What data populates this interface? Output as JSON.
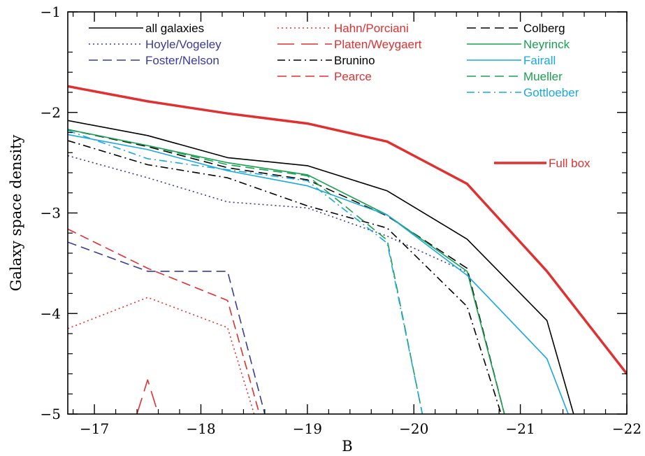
{
  "chart_data": {
    "type": "line",
    "title": "",
    "xlabel": "B",
    "ylabel": "Galaxy space density",
    "xlim": [
      -16.75,
      -22
    ],
    "ylim": [
      -5,
      -1
    ],
    "x_ticks": [
      -17,
      -18,
      -19,
      -20,
      -21,
      -22
    ],
    "y_ticks": [
      -5,
      -4,
      -3,
      -2,
      -1
    ],
    "x_tick_labels": [
      "−17",
      "−18",
      "−19",
      "−20",
      "−21",
      "−22"
    ],
    "y_tick_labels": [
      "−5",
      "−4",
      "−3",
      "−2",
      "−1"
    ],
    "grid": false,
    "legend": "top",
    "series": [
      {
        "name": "all galaxies",
        "color": "#000000",
        "dash": "solid",
        "width": 1.6,
        "x": [
          -16.75,
          -17.5,
          -18.25,
          -19,
          -19.75,
          -20.5,
          -21.25,
          -21.5
        ],
        "y": [
          -2.08,
          -2.23,
          -2.45,
          -2.53,
          -2.78,
          -3.26,
          -4.07,
          -5.0
        ]
      },
      {
        "name": "Hoyle/Vogeley",
        "color": "#3a3a9a",
        "dash": "dotted",
        "width": 1.6,
        "x": [
          -16.75,
          -17.5,
          -18.25,
          -19,
          -19.75,
          -20.5
        ],
        "y": [
          -2.43,
          -2.65,
          -2.89,
          -2.95,
          -3.23,
          -3.59
        ]
      },
      {
        "name": "Foster/Nelson",
        "color": "#3a3a9a",
        "dash": "dashed",
        "width": 1.6,
        "x": [
          -16.75,
          -17.5,
          -18.25,
          -18.6
        ],
        "y": [
          -3.29,
          -3.58,
          -3.58,
          -5.0
        ]
      },
      {
        "name": "Hahn/Porciani",
        "color": "#e03030",
        "dash": "dotted",
        "width": 1.6,
        "x": [
          -16.75,
          -17.5,
          -18.25,
          -18.5
        ],
        "y": [
          -4.15,
          -3.84,
          -4.14,
          -5.0
        ]
      },
      {
        "name": "Platen/Weygaert",
        "color": "#e03030",
        "dash": "longdash",
        "width": 1.6,
        "x": [
          -17.4,
          -17.5,
          -17.6
        ],
        "y": [
          -5.0,
          -4.66,
          -5.0
        ]
      },
      {
        "name": "Brunino",
        "color": "#000000",
        "dash": "dashdot",
        "width": 1.6,
        "x": [
          -16.75,
          -17.5,
          -18.25,
          -19,
          -19.75,
          -20.5,
          -20.82
        ],
        "y": [
          -2.28,
          -2.52,
          -2.65,
          -2.93,
          -3.15,
          -3.93,
          -5.0
        ]
      },
      {
        "name": "Pearce",
        "color": "#e03030",
        "dash": "dashed",
        "width": 1.6,
        "x": [
          -16.75,
          -17.5,
          -18.25,
          -18.55
        ],
        "y": [
          -3.16,
          -3.55,
          -3.87,
          -5.0
        ]
      },
      {
        "name": "Colberg",
        "color": "#000000",
        "dash": "dashed",
        "width": 1.6,
        "x": [
          -16.75,
          -17.5,
          -18.25,
          -19,
          -19.75,
          -20.5,
          -20.85
        ],
        "y": [
          -2.17,
          -2.34,
          -2.55,
          -2.67,
          -3.03,
          -3.55,
          -5.0
        ]
      },
      {
        "name": "Neyrinck",
        "color": "#1aa050",
        "dash": "solid",
        "width": 1.6,
        "x": [
          -16.75,
          -17.5,
          -18.25,
          -19,
          -19.75,
          -20.5,
          -20.85
        ],
        "y": [
          -2.17,
          -2.33,
          -2.5,
          -2.62,
          -3.02,
          -3.58,
          -5.0
        ]
      },
      {
        "name": "Fairall",
        "color": "#1aa8e0",
        "dash": "solid",
        "width": 1.6,
        "x": [
          -16.75,
          -17.5,
          -18.25,
          -19,
          -19.75,
          -20.5,
          -21.25,
          -21.45
        ],
        "y": [
          -2.22,
          -2.37,
          -2.58,
          -2.73,
          -3.02,
          -3.62,
          -4.45,
          -5.0
        ]
      },
      {
        "name": "Mueller",
        "color": "#1aa050",
        "dash": "dashed",
        "width": 1.6,
        "x": [
          -16.75,
          -17.5,
          -18.25,
          -19,
          -19.75,
          -20.08
        ],
        "y": [
          -2.17,
          -2.33,
          -2.52,
          -2.63,
          -3.27,
          -5.0
        ]
      },
      {
        "name": "Gottloeber",
        "color": "#1aa8e0",
        "dash": "dashdot",
        "width": 1.6,
        "x": [
          -16.75,
          -17.5,
          -18.25,
          -19,
          -19.75,
          -20.08
        ],
        "y": [
          -2.18,
          -2.46,
          -2.57,
          -2.68,
          -3.3,
          -5.0
        ]
      },
      {
        "name": "Full box",
        "color": "#e03030",
        "dash": "solid",
        "width": 3.5,
        "x": [
          -16.75,
          -17.5,
          -18.25,
          -19,
          -19.75,
          -20.5,
          -21.25,
          -22
        ],
        "y": [
          -1.74,
          -1.89,
          -2.01,
          -2.11,
          -2.29,
          -2.71,
          -3.58,
          -4.6
        ]
      }
    ],
    "legend_columns": [
      [
        "all galaxies",
        "Hoyle/Vogeley",
        "Foster/Nelson"
      ],
      [
        "Hahn/Porciani",
        "Platen/Weygaert",
        "Brunino",
        "Pearce"
      ],
      [
        "Colberg",
        "Neyrinck",
        "Fairall",
        "Mueller",
        "Gottloeber"
      ]
    ],
    "annotation": {
      "label": "Full box",
      "color": "#e03030"
    }
  }
}
